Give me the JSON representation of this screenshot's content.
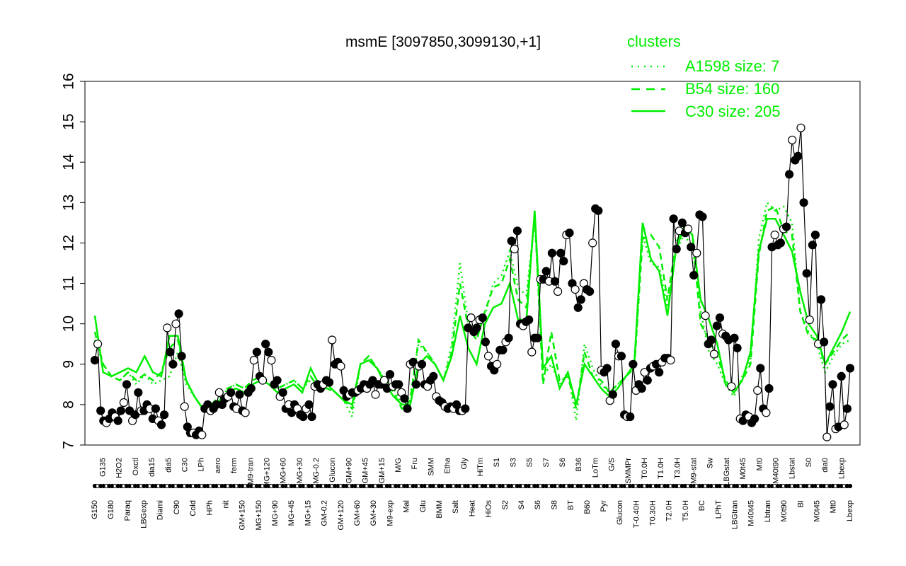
{
  "chart_data": {
    "type": "line",
    "title": "msmE [3097850,3099130,+1]",
    "xlabel": "",
    "ylabel": "",
    "ylim": [
      7,
      16
    ],
    "yticks": [
      7,
      8,
      9,
      10,
      11,
      12,
      13,
      14,
      15,
      16
    ],
    "grid": false,
    "legend": {
      "title": "clusters",
      "position": "top-right",
      "color": "#00ee00",
      "entries": [
        {
          "label": "A1598 size: 7",
          "style": "dotted"
        },
        {
          "label": "B54 size: 160",
          "style": "dashed"
        },
        {
          "label": "C30 size: 205",
          "style": "solid"
        }
      ]
    },
    "x_tick_labels": [
      "G150",
      "G135",
      "G180",
      "H2O2",
      "Paraq",
      "Oxctl",
      "LBGexp",
      "dia15",
      "Diami",
      "dia5",
      "C90",
      "C30",
      "Cold",
      "LPh",
      "HPh",
      "aero",
      "nit",
      "ferm",
      "GM+150",
      "M9-tran",
      "MG+150",
      "MG+120",
      "MG+90",
      "MG+60",
      "MG+45",
      "MG+30",
      "MG+15",
      "MG-0.2",
      "GM-0.2",
      "Glucon",
      "GM+120",
      "GM+90",
      "GM+60",
      "GM+45",
      "GM+30",
      "GM+15",
      "M9-exp",
      "M/G",
      "Mal",
      "Fru",
      "Glu",
      "SMM",
      "BMM",
      "Etha",
      "Salt",
      "Gly",
      "Heat",
      "HiTm",
      "HiOs",
      "S1",
      "S2",
      "S3",
      "S4",
      "S5",
      "S6",
      "S7",
      "S8",
      "S6",
      "BT",
      "B36",
      "B60",
      "LoTm",
      "Pyr",
      "G/S",
      "Glucon",
      "SMMPr",
      "T-0.40H",
      "T0.0H",
      "T0.30H",
      "T1.0H",
      "T2.0H",
      "T3.0H",
      "T5.0H",
      "M9-stat",
      "BC",
      "Sw",
      "LPhT",
      "LBGstat",
      "LBGtran",
      "M0t45",
      "M40t45",
      "Mt0",
      "Lbtran",
      "M40t90",
      "M0t90",
      "Lbstat",
      "BI",
      "S0",
      "M0t45",
      "dia0",
      "Mt0",
      "Lbexp",
      "Lbexp"
    ],
    "series": [
      {
        "name": "",
        "color": "#000000",
        "marker": "circle",
        "values": [
          9.1,
          9.5,
          7.85,
          7.6,
          7.55,
          7.65,
          7.8,
          7.7,
          7.6,
          7.85,
          8.05,
          8.5,
          7.85,
          7.6,
          7.75,
          8.3,
          7.85,
          7.85,
          8.0,
          7.9,
          7.65,
          7.9,
          7.6,
          7.5,
          7.75,
          9.9,
          9.3,
          9.0,
          10.0,
          10.25,
          9.2,
          7.95,
          7.45,
          7.3,
          7.3,
          7.25,
          7.35,
          7.25,
          7.9,
          8.0,
          7.85,
          7.9,
          8.0,
          8.3,
          8.0,
          8.15,
          8.2,
          8.3,
          7.95,
          7.9,
          8.25,
          7.85,
          7.8,
          8.3,
          8.4,
          9.1,
          9.3,
          8.7,
          8.6,
          9.5,
          9.3,
          9.1,
          8.5,
          8.6,
          8.2,
          8.3,
          7.9,
          8.0,
          7.8,
          8.0,
          7.9,
          7.75,
          7.7,
          7.9,
          8.0,
          7.7,
          8.45,
          8.5,
          8.4,
          8.5,
          8.6,
          8.55,
          9.6,
          9.0,
          9.05,
          8.95,
          8.35,
          8.2,
          8.25,
          8.3,
          8.3,
          8.35,
          8.4,
          8.5,
          8.4,
          8.5,
          8.6,
          8.25,
          8.5,
          8.5,
          8.6,
          8.4,
          8.75,
          8.45,
          8.5,
          8.5,
          8.3,
          8.15,
          7.9,
          9.0,
          9.05,
          8.5,
          8.95,
          9.0,
          8.5,
          8.45,
          8.6,
          8.7,
          8.2,
          8.1,
          8.05,
          7.95,
          7.9,
          7.95,
          7.9,
          8.0,
          7.85,
          7.85,
          7.9,
          9.9,
          10.15,
          9.8,
          9.9,
          10.1,
          10.15,
          9.55,
          9.2,
          8.95,
          8.85,
          9.0,
          9.35,
          9.35,
          9.55,
          9.65,
          12.05,
          11.85,
          12.3,
          10.0,
          9.95,
          10.05,
          10.1,
          9.3,
          9.65,
          9.65,
          11.1,
          11.1,
          11.3,
          11.05,
          11.75,
          11.05,
          10.8,
          11.75,
          11.55,
          12.2,
          12.25,
          11.0,
          10.85,
          10.4,
          10.6,
          11.0,
          10.85,
          10.8,
          12.0,
          12.85,
          12.8,
          8.85,
          8.8,
          8.9,
          8.1,
          8.25,
          9.5,
          9.2,
          9.2,
          7.75,
          7.7,
          7.7,
          9.0,
          8.35,
          8.5,
          8.4,
          8.8,
          8.6,
          8.9,
          8.95,
          9.0,
          8.8,
          9.05,
          9.15,
          9.15,
          9.1,
          12.6,
          11.85,
          12.3,
          12.5,
          12.25,
          12.35,
          11.9,
          11.2,
          11.75,
          12.7,
          12.65,
          10.2,
          9.5,
          9.6,
          9.25,
          9.95,
          10.15,
          9.75,
          9.7,
          9.6,
          8.45,
          9.65,
          9.4,
          7.65,
          7.6,
          7.75,
          7.7,
          7.55,
          7.65,
          8.35,
          8.9,
          7.9,
          7.8,
          8.4,
          11.9,
          12.2,
          11.95,
          12.0,
          12.35,
          12.4,
          13.7,
          14.55,
          14.05,
          14.15,
          14.85,
          13.0,
          11.25,
          10.1,
          11.95,
          12.2,
          9.5,
          10.6,
          9.55,
          7.2,
          7.95,
          8.5,
          7.4,
          7.45,
          8.7,
          7.5,
          7.9,
          8.9
        ]
      },
      {
        "name": "A1598 size: 7",
        "color": "#00ee00",
        "style": "dotted",
        "values": [
          9.6,
          9.0,
          8.7,
          8.6,
          8.8,
          8.5,
          8.75,
          8.5,
          8.6,
          8.7,
          9.3,
          8.5,
          8.2,
          7.9,
          8.0,
          8.1,
          8.4,
          8.5,
          8.4,
          8.5,
          8.6,
          8.5,
          8.4,
          8.5,
          8.6,
          8.4,
          8.6,
          8.4,
          8.4,
          8.3,
          8.1,
          7.7,
          9.0,
          9.2,
          8.9,
          8.6,
          8.4,
          8.0,
          8.2,
          9.5,
          9.3,
          9.0,
          8.6,
          9.5,
          11.5,
          10.0,
          9.7,
          10.2,
          11.0,
          11.2,
          11.8,
          10.9,
          10.7,
          12.6,
          8.7,
          9.0,
          8.5,
          8.8,
          7.6,
          9.5,
          8.9,
          8.5,
          8.3,
          8.5,
          8.7,
          8.9,
          12.2,
          11.5,
          11.4,
          10.4,
          11.8,
          12.2,
          11.9,
          10.3,
          9.3,
          9.0,
          8.5,
          8.2,
          8.7,
          9.1,
          12.1,
          13.0,
          12.8,
          12.9,
          12.5,
          10.3,
          9.8,
          9.5,
          8.8,
          9.2,
          9.5,
          9.6
        ]
      },
      {
        "name": "B54 size: 160",
        "color": "#00ee00",
        "style": "dashed",
        "values": [
          9.8,
          9.0,
          8.7,
          8.6,
          8.8,
          8.6,
          8.75,
          8.6,
          8.8,
          9.4,
          9.6,
          8.6,
          8.2,
          7.9,
          8.0,
          8.2,
          8.4,
          8.5,
          8.4,
          8.6,
          8.7,
          8.5,
          8.4,
          8.5,
          8.6,
          8.4,
          8.7,
          8.4,
          8.4,
          8.3,
          8.1,
          7.9,
          9.0,
          9.2,
          8.9,
          8.6,
          8.3,
          7.9,
          8.1,
          9.6,
          9.3,
          9.0,
          8.6,
          9.3,
          11.0,
          9.9,
          9.6,
          10.3,
          10.9,
          11.0,
          11.6,
          10.6,
          10.4,
          12.7,
          8.5,
          9.8,
          8.6,
          8.7,
          7.9,
          9.3,
          8.7,
          8.6,
          8.3,
          8.5,
          8.7,
          8.9,
          12.1,
          12.2,
          11.9,
          10.6,
          12.0,
          12.4,
          12.2,
          10.0,
          9.6,
          9.2,
          8.6,
          8.3,
          8.6,
          9.0,
          11.7,
          12.8,
          12.9,
          12.3,
          12.2,
          10.3,
          9.7,
          9.6,
          9.0,
          9.3,
          9.6,
          9.8
        ]
      },
      {
        "name": "C30 size: 205",
        "color": "#00ee00",
        "style": "solid",
        "values": [
          10.2,
          8.8,
          8.7,
          8.8,
          8.9,
          8.8,
          9.2,
          8.8,
          8.7,
          9.7,
          9.7,
          8.6,
          8.2,
          7.9,
          8.0,
          8.1,
          8.3,
          8.4,
          8.3,
          8.5,
          8.6,
          8.5,
          8.3,
          8.4,
          8.5,
          8.3,
          8.9,
          8.5,
          8.5,
          8.3,
          8.1,
          8.0,
          9.0,
          9.1,
          8.9,
          8.5,
          8.2,
          8.0,
          8.0,
          9.0,
          9.2,
          9.0,
          8.6,
          9.2,
          10.2,
          9.4,
          9.0,
          10.0,
          10.4,
          10.5,
          11.0,
          10.1,
          10.1,
          12.8,
          8.9,
          9.2,
          8.4,
          8.8,
          8.0,
          9.0,
          8.7,
          8.4,
          8.2,
          8.4,
          8.7,
          9.0,
          12.5,
          11.6,
          11.3,
          10.2,
          11.8,
          12.4,
          12.2,
          10.6,
          10.1,
          9.5,
          8.5,
          8.3,
          8.6,
          9.3,
          11.8,
          12.6,
          12.6,
          12.2,
          11.8,
          10.8,
          10.0,
          9.7,
          9.0,
          9.4,
          9.8,
          10.3
        ]
      }
    ]
  }
}
